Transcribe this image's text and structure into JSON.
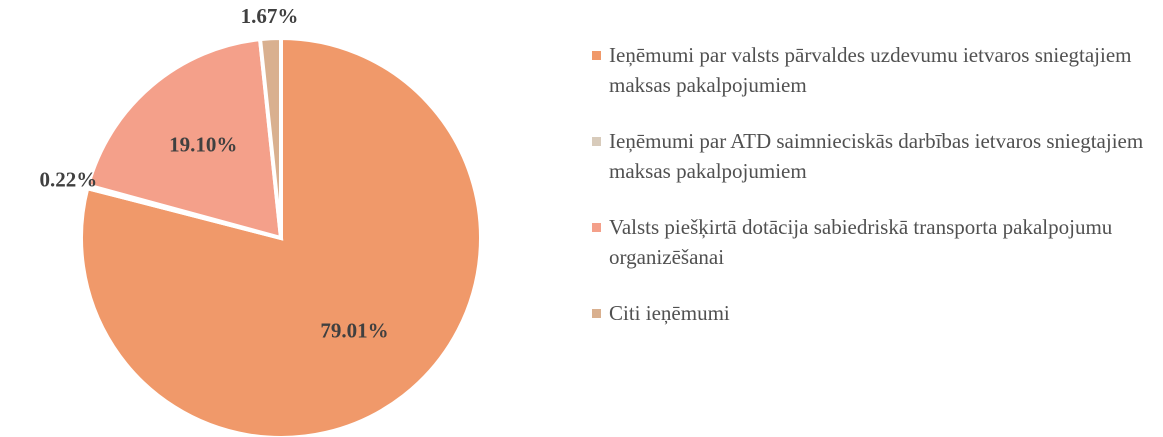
{
  "chart_data": {
    "type": "pie",
    "categories": [
      "Ieņēmumi par valsts pārvaldes uzdevumu ietvaros sniegtajiem maksas pakalpojumiem",
      "Ieņēmumi par ATD saimnieciskās darbības ietvaros sniegtajiem maksas pakalpojumiem",
      "Valsts piešķirtā dotācija sabiedriskā transporta pakalpojumu organizēšanai",
      "Citi ieņēmumi"
    ],
    "values": [
      79.01,
      0.22,
      19.1,
      1.67
    ],
    "value_labels": [
      "79.01%",
      "0.22%",
      "19.10%",
      "1.67%"
    ],
    "colors": [
      "#F0996A",
      "#D8CBBB",
      "#F4A08A",
      "#D9B08F"
    ],
    "legend": "right"
  }
}
